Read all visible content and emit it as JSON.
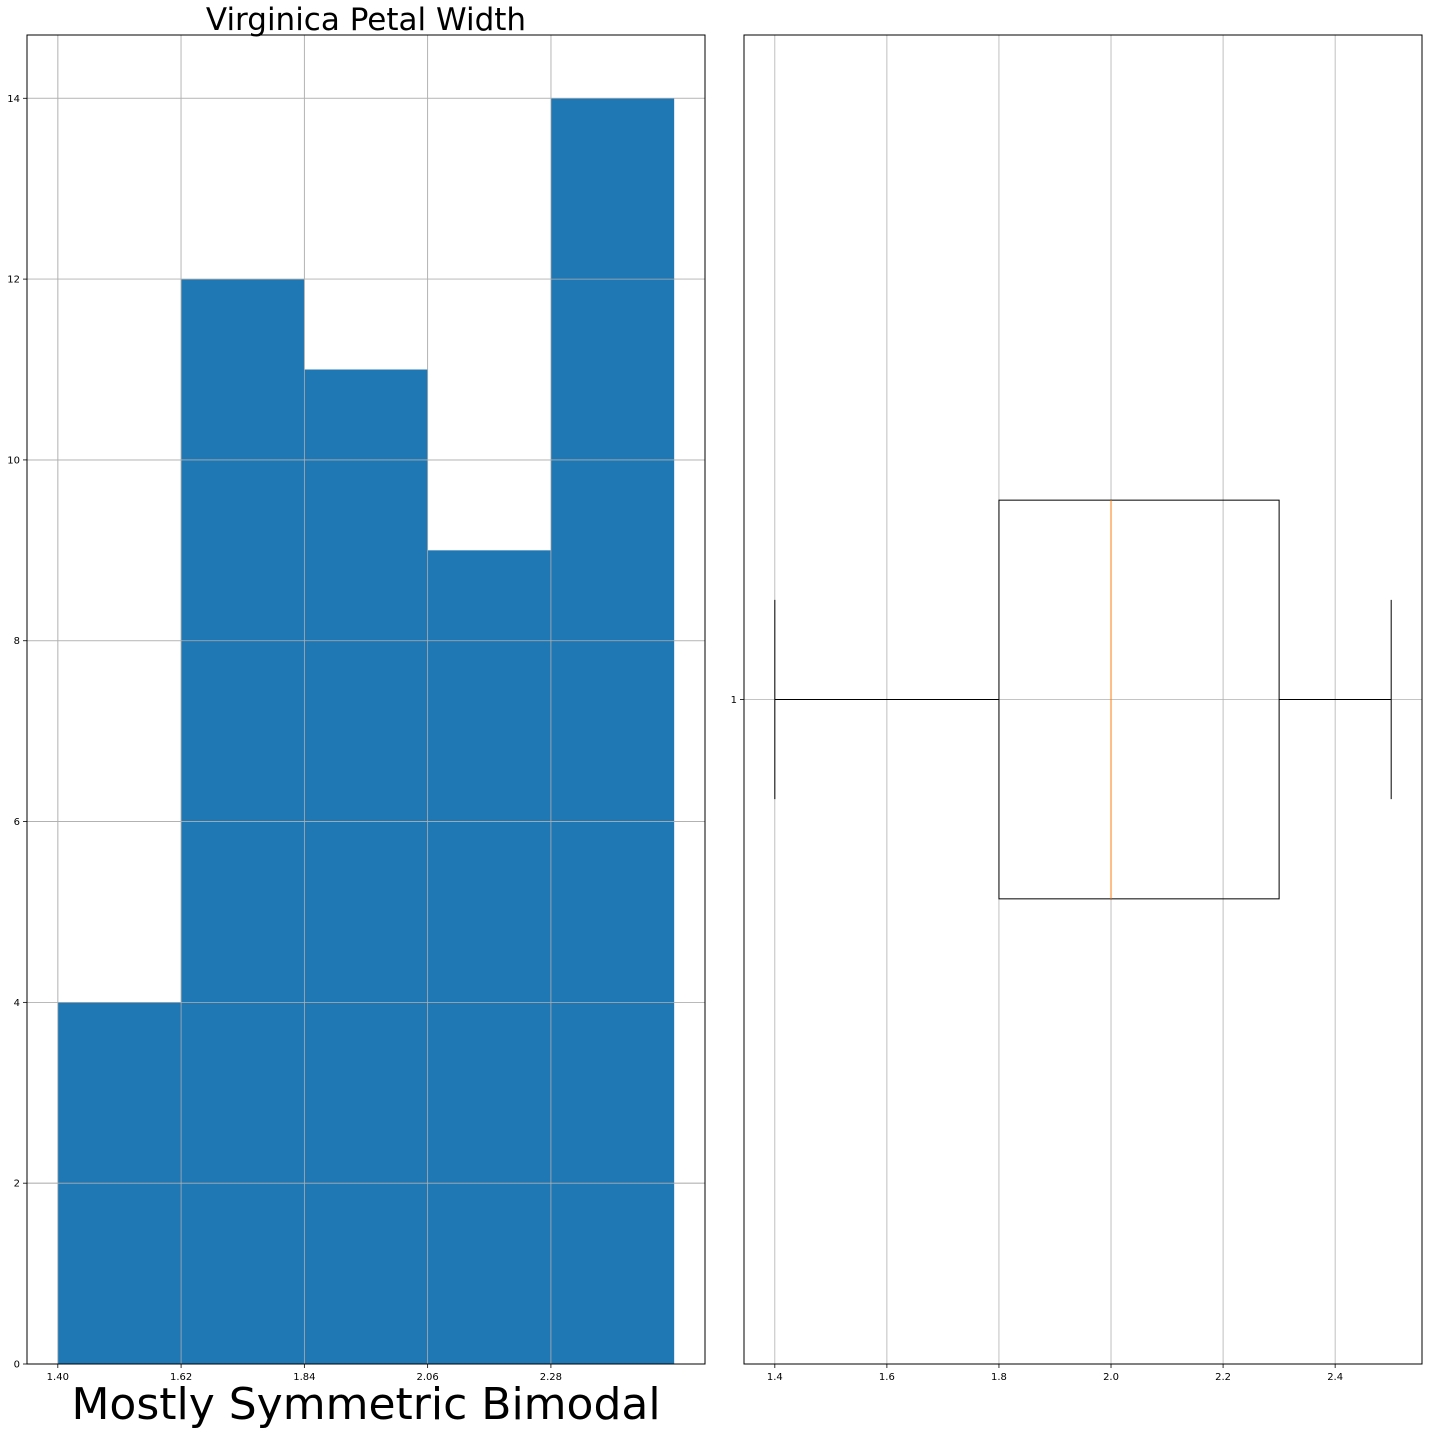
{
  "chart_data": [
    {
      "type": "bar",
      "subtype": "histogram",
      "title": "Virginica Petal Width",
      "xlabel": "Mostly Symmetric Bimodal",
      "ylabel": "",
      "bin_edges": [
        1.4,
        1.62,
        1.84,
        2.06,
        2.28,
        2.5
      ],
      "values": [
        4,
        12,
        11,
        9,
        14
      ],
      "xticks": [
        "1.40",
        "1.62",
        "1.84",
        "2.06",
        "2.28"
      ],
      "yticks": [
        "0",
        "2",
        "4",
        "6",
        "8",
        "10",
        "12",
        "14"
      ],
      "xlim": [
        1.345,
        2.555
      ],
      "ylim": [
        0,
        14.7
      ],
      "grid": true,
      "bar_color": "#1f77b4"
    },
    {
      "type": "box",
      "orientation": "horizontal",
      "title": "",
      "xlabel": "",
      "ylabel": "",
      "categories": [
        "1"
      ],
      "stats": {
        "whislo": 1.4,
        "q1": 1.8,
        "med": 2.0,
        "q3": 2.3,
        "whishi": 2.5
      },
      "xticks": [
        "1.4",
        "1.6",
        "1.8",
        "2.0",
        "2.2",
        "2.4"
      ],
      "xlim": [
        1.345,
        2.555
      ],
      "ylim": [
        0.5,
        1.5
      ],
      "grid": true,
      "median_color": "#ff7f0e"
    }
  ]
}
